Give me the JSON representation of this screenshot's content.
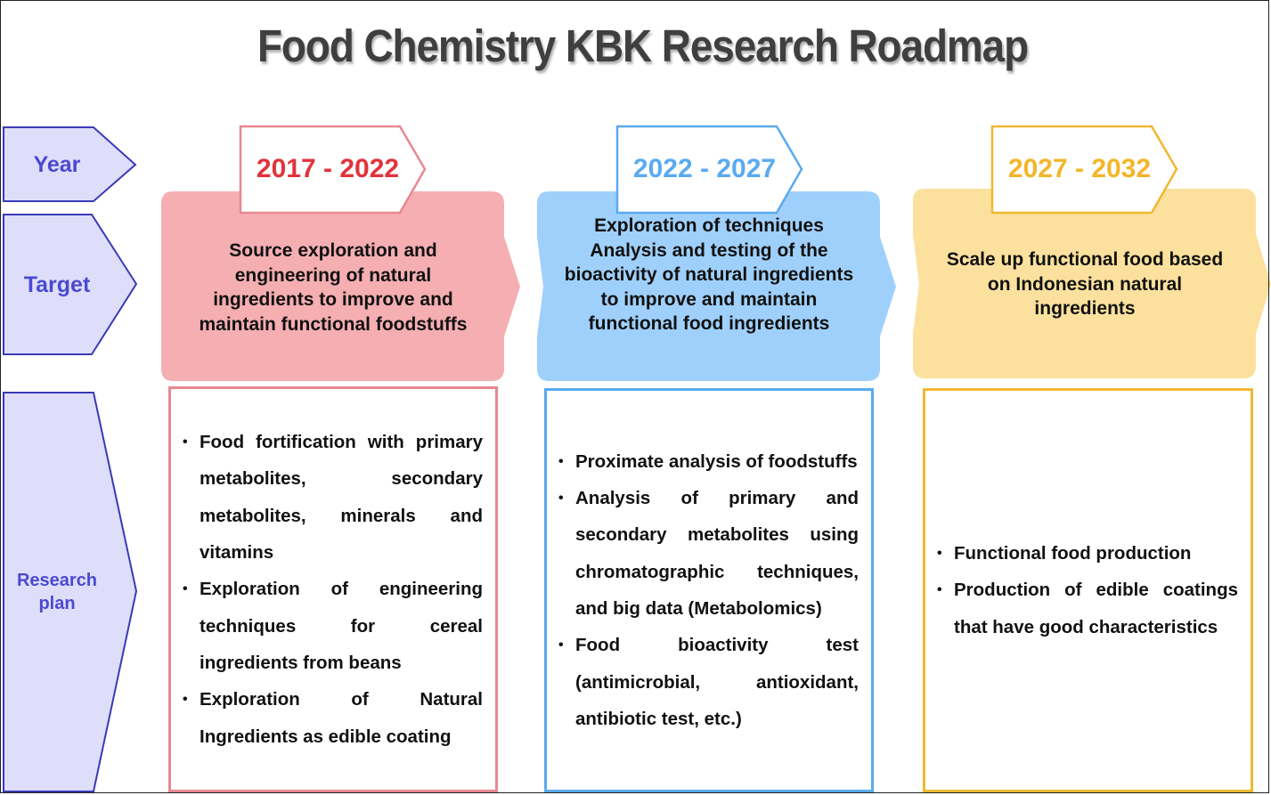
{
  "title": "Food Chemistry KBK Research Roadmap",
  "row_labels": {
    "year": "Year",
    "target": "Target",
    "research_plan_line1": "Research",
    "research_plan_line2": "plan"
  },
  "colors": {
    "label_fill": "#dedefb",
    "label_stroke": "#3a3ab8",
    "label_text": "#4a4ad0",
    "red": "#e0343c",
    "red_fill": "#f5aeb2",
    "red_border": "#e88890",
    "blue": "#5aaaf0",
    "blue_fill": "#9fd0fb",
    "blue_border": "#5aaaf0",
    "yellow": "#f2b62a",
    "yellow_fill": "#fbe19d",
    "yellow_border": "#f0b830"
  },
  "phases": [
    {
      "years": "2017 - 2022",
      "target": "Source exploration and engineering of natural ingredients to improve and maintain functional foodstuffs",
      "plan": [
        "Food fortification with primary metabolites, secondary metabolites, minerals and vitamins",
        "Exploration of engineering techniques for cereal ingredients from beans",
        "Exploration of Natural Ingredients as edible coating"
      ]
    },
    {
      "years": "2022 - 2027",
      "target": "Exploration of techniques Analysis and testing of the bioactivity of natural ingredients to improve and maintain functional food ingredients",
      "plan": [
        "Proximate analysis of foodstuffs",
        "Analysis of primary and secondary metabolites using chromatographic techniques, and big data (Metabolomics)",
        "Food bioactivity test (antimicrobial, antioxidant, antibiotic test, etc.)"
      ]
    },
    {
      "years": "2027 - 2032",
      "target": "Scale up functional food based on Indonesian natural ingredients",
      "plan": [
        "Functional food production",
        "Production of edible coatings that have good characteristics"
      ]
    }
  ]
}
